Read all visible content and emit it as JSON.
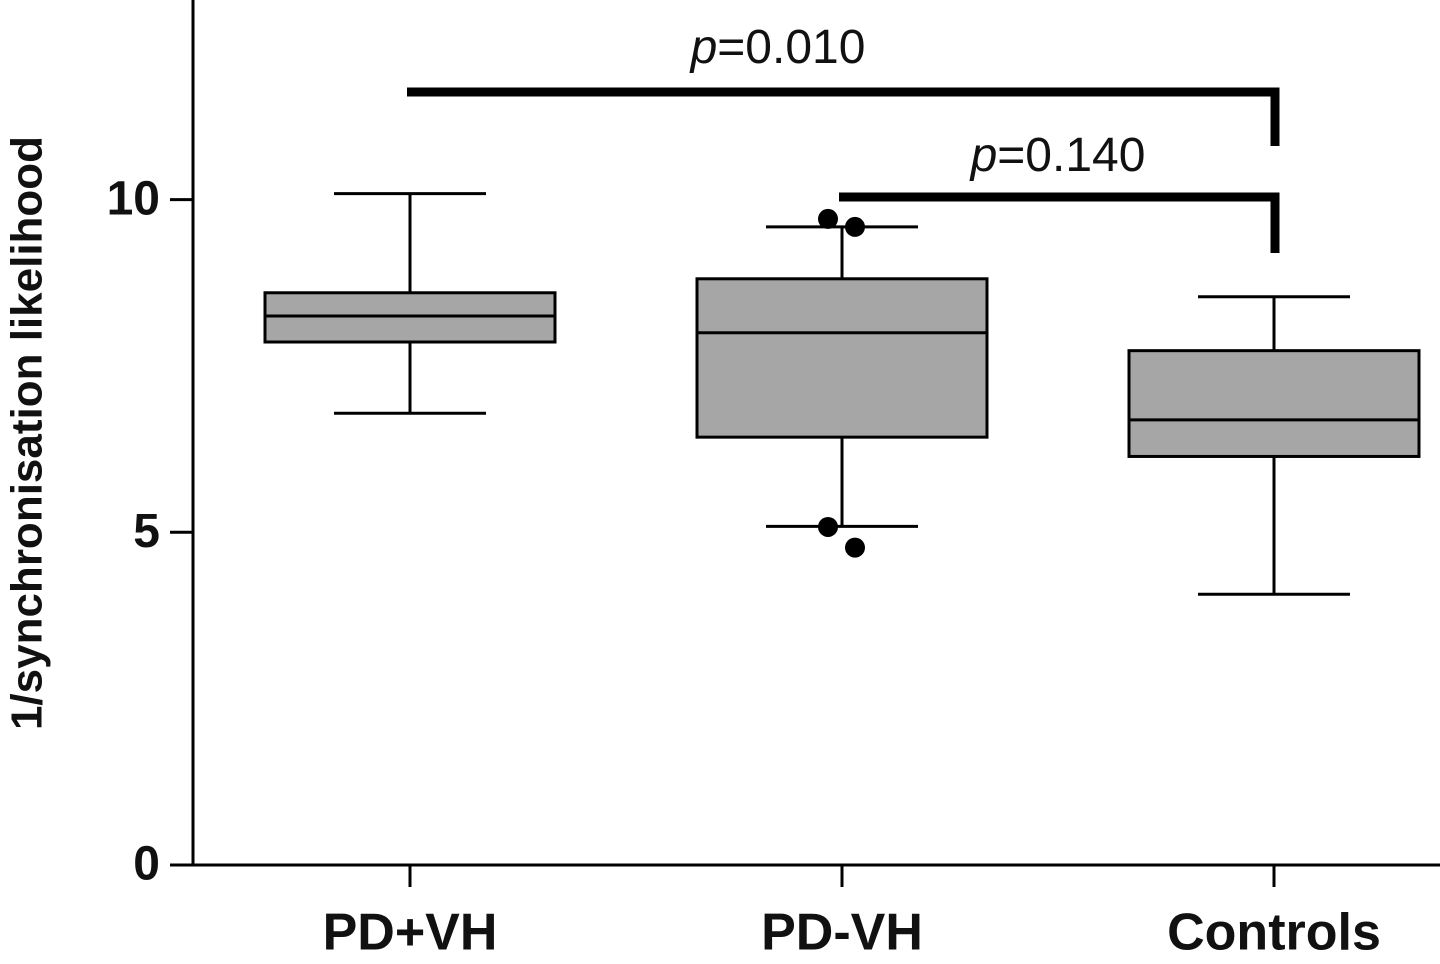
{
  "chart_data": {
    "type": "box",
    "y_label": "1/synchronisation likelihood",
    "categories": [
      "PD+VH",
      "PD-VH",
      "Controls"
    ],
    "boxes": [
      {
        "whisker_low": 6.79,
        "q1": 7.86,
        "median": 8.25,
        "q3": 8.6,
        "whisker_high": 10.09,
        "outliers": []
      },
      {
        "whisker_low": 5.09,
        "q1": 6.43,
        "median": 8.0,
        "q3": 8.81,
        "whisker_high": 9.59,
        "outliers": [
          9.71,
          9.59,
          5.08,
          4.77
        ]
      },
      {
        "whisker_low": 4.07,
        "q1": 6.14,
        "median": 6.69,
        "q3": 7.73,
        "whisker_high": 8.54,
        "outliers": []
      }
    ],
    "color": "#a6a6a6",
    "ylim": [
      0,
      13
    ],
    "yticks": [
      0,
      5,
      10
    ],
    "annotations": [
      "p=0.010",
      "p=0.140"
    ]
  }
}
